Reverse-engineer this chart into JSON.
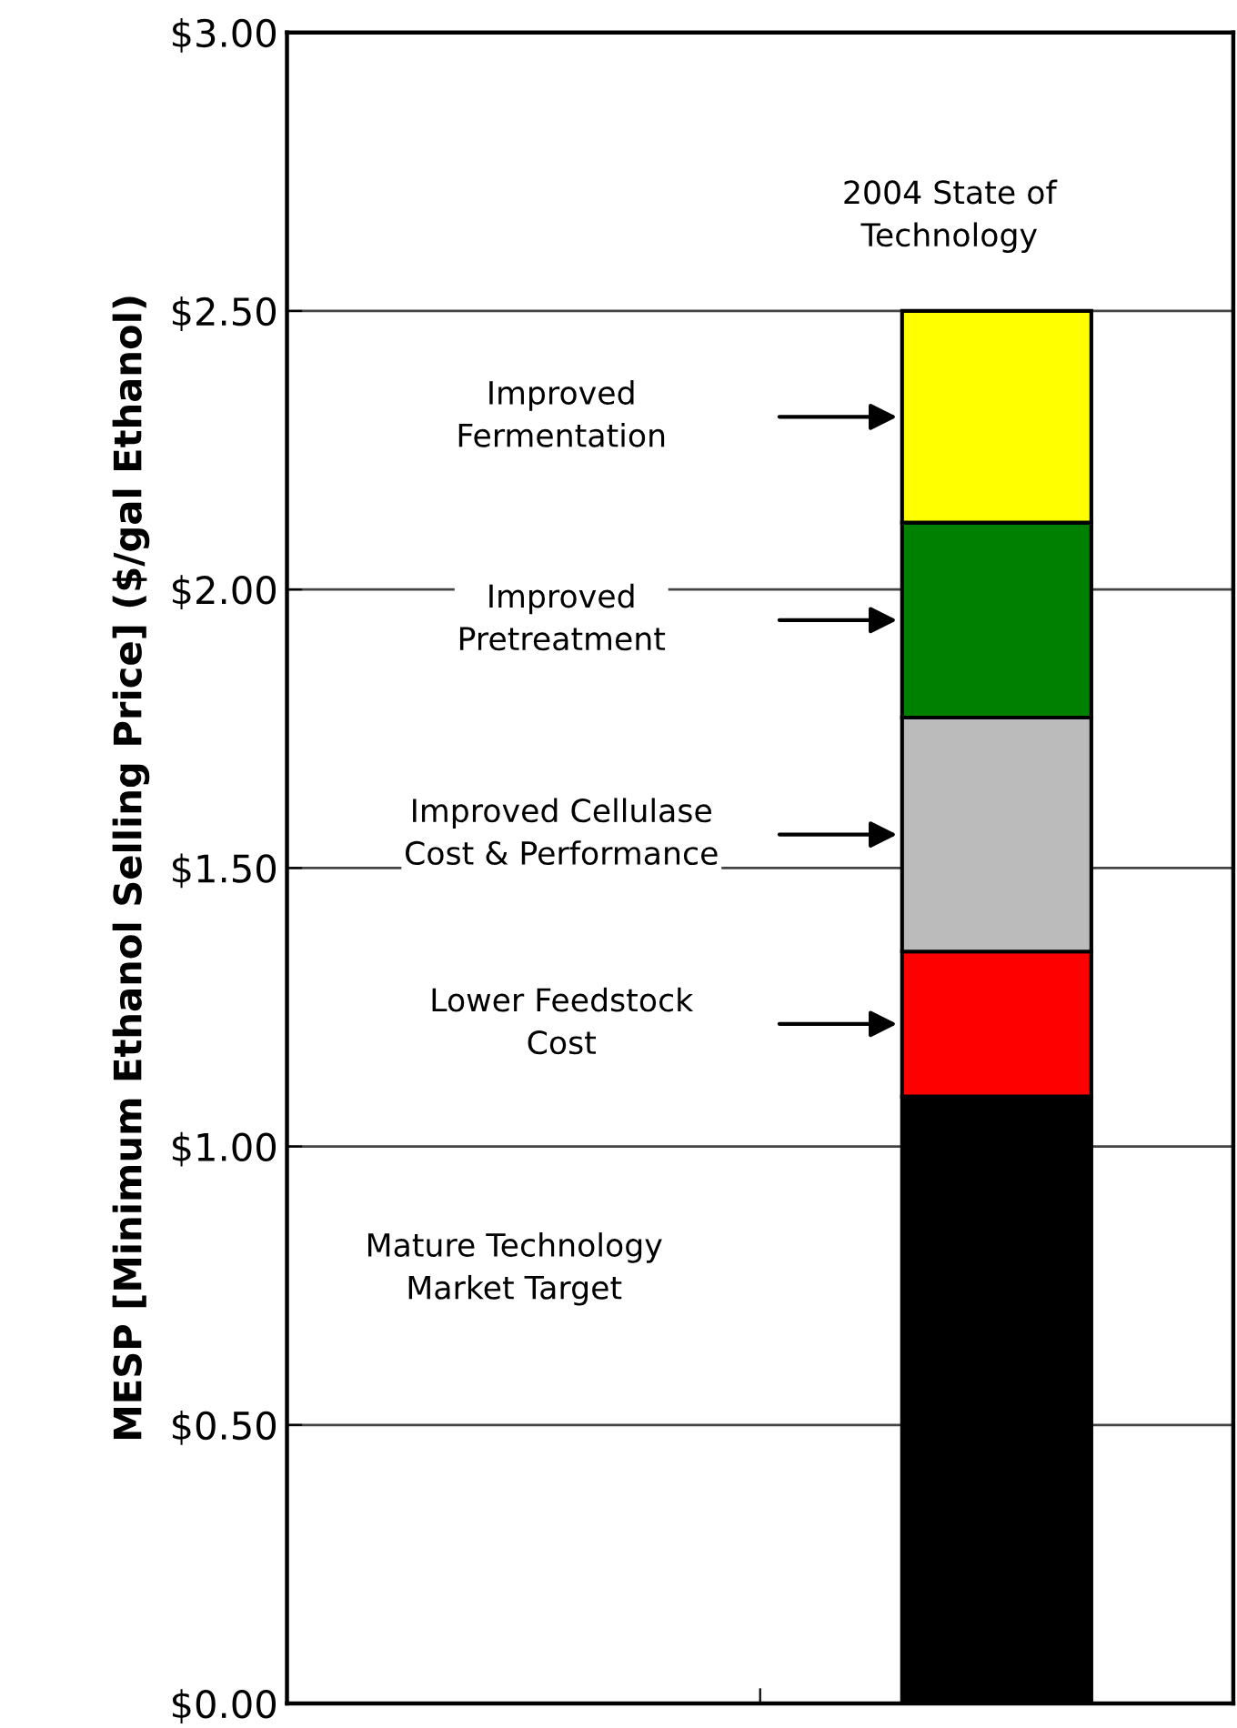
{
  "chart_data": {
    "type": "bar",
    "stacked": true,
    "categories": [
      null,
      null
    ],
    "ylabel": "MESP [Minimum Ethanol Selling Price] ($/gal Ethanol)",
    "series": [
      {
        "color": "#000000",
        "values": [
          null,
          1.09
        ]
      },
      {
        "color": "#ff0000",
        "values": [
          null,
          0.26
        ]
      },
      {
        "color": "#bbbbbb",
        "values": [
          null,
          0.42
        ]
      },
      {
        "color": "#008000",
        "values": [
          null,
          0.35
        ]
      },
      {
        "color": "#ffff00",
        "values": [
          null,
          0.38
        ]
      }
    ],
    "ylim": [
      0,
      3
    ],
    "yticks": [
      {
        "value": 0,
        "label": "$0.00"
      },
      {
        "value": 0.5,
        "label": "$0.50"
      },
      {
        "value": 1,
        "label": "$1.00"
      },
      {
        "value": 1.5,
        "label": "$1.50"
      },
      {
        "value": 2,
        "label": "$2.00"
      },
      {
        "value": 2.5,
        "label": "$2.50"
      },
      {
        "value": 3,
        "label": "$3.00"
      }
    ],
    "grid": "y",
    "tick_labels": "y",
    "legend": false,
    "annotations": [
      "Improved\nFermentation",
      "Improved\nPretreatment",
      "Improved Cellulase\nCost & Performance",
      "Lower Feedstock\nCost",
      "Mature Technology\nMarket Target",
      "2004 State of\nTechnology"
    ]
  }
}
